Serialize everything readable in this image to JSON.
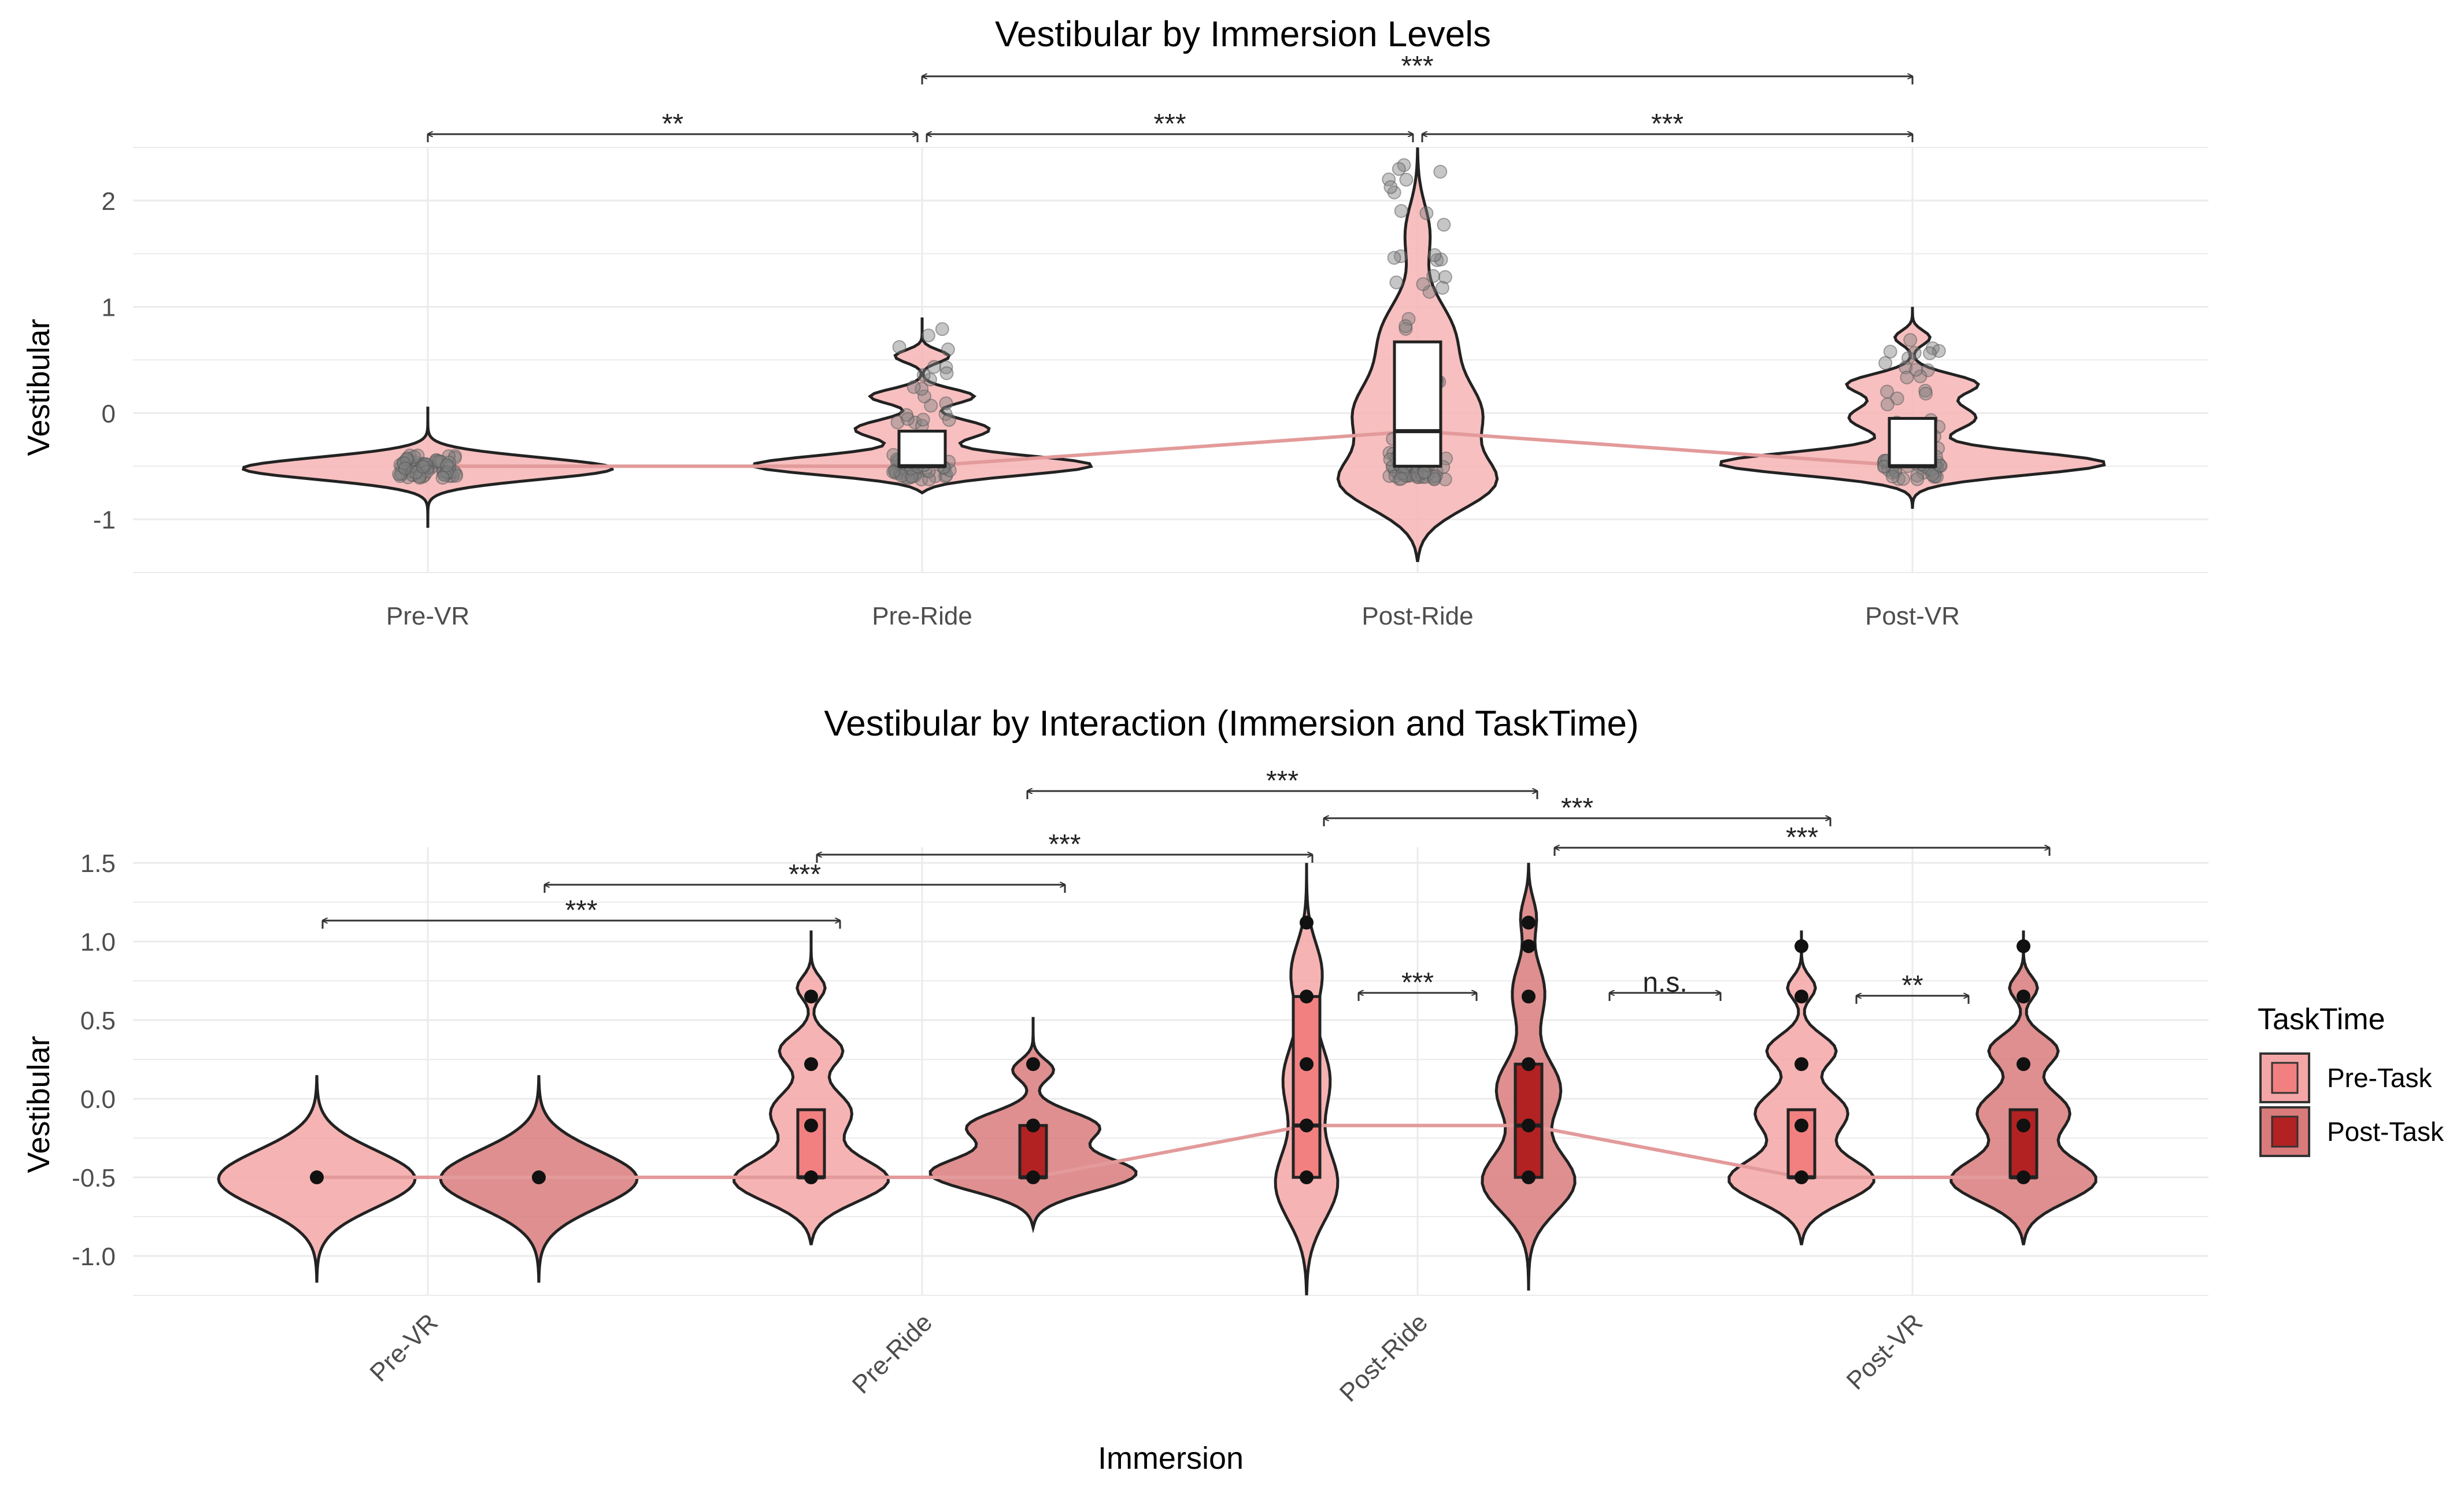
{
  "colors": {
    "grid": "#ebebeb",
    "axis_text": "#4d4d4d",
    "title": "#000000",
    "pre_task_fill": "#f4a6a6",
    "post_task_fill": "#d97b7b",
    "violin_fill_single": "#f6b4b4",
    "box_pre": "#f28080",
    "box_post": "#b22222",
    "mean_line": "#e39a9a",
    "jitter": "#808080"
  },
  "chart_data": [
    {
      "type": "violin",
      "title": "Vestibular by Immersion Levels",
      "xlabel": "",
      "ylabel": "Vestibular",
      "categories": [
        "Pre-VR",
        "Pre-Ride",
        "Post-Ride",
        "Post-VR"
      ],
      "ylim": [
        -1.5,
        2.5
      ],
      "yticks": [
        -1,
        0,
        1,
        2
      ],
      "ytick_labels": [
        "-1",
        "0",
        "1",
        "2"
      ],
      "series": [
        {
          "name": "Pre-VR",
          "min": -1.08,
          "max": 0.06,
          "box": null,
          "median": -0.5
        },
        {
          "name": "Pre-Ride",
          "min": -0.75,
          "max": 0.9,
          "box": [
            -0.5,
            -0.17
          ],
          "median": -0.5
        },
        {
          "name": "Post-Ride",
          "min": -1.4,
          "max": 2.5,
          "box": [
            -0.5,
            0.67
          ],
          "median": -0.17
        },
        {
          "name": "Post-VR",
          "min": -0.9,
          "max": 1.0,
          "box": [
            -0.5,
            -0.05
          ],
          "median": -0.5
        }
      ],
      "significance": [
        {
          "from": "Pre-VR",
          "to": "Pre-Ride",
          "label": "**",
          "level": 0
        },
        {
          "from": "Pre-Ride",
          "to": "Post-Ride",
          "label": "***",
          "level": 0
        },
        {
          "from": "Post-Ride",
          "to": "Post-VR",
          "label": "***",
          "level": 0
        },
        {
          "from": "Pre-Ride",
          "to": "Post-VR",
          "label": "***",
          "level": 1
        }
      ]
    },
    {
      "type": "violin",
      "title": "Vestibular by Interaction (Immersion and TaskTime)",
      "xlabel": "Immersion",
      "ylabel": "Vestibular",
      "categories": [
        "Pre-VR",
        "Pre-Ride",
        "Post-Ride",
        "Post-VR"
      ],
      "ylim": [
        -1.25,
        1.6
      ],
      "yticks": [
        -1.0,
        -0.5,
        0.0,
        0.5,
        1.0,
        1.5
      ],
      "ytick_labels": [
        "-1.0",
        "-0.5",
        "0.0",
        "0.5",
        "1.0",
        "1.5"
      ],
      "legend": {
        "title": "TaskTime",
        "entries": [
          "Pre-Task",
          "Post-Task"
        ],
        "position": "right"
      },
      "series": [
        {
          "name": "Pre-Task",
          "groups": [
            {
              "category": "Pre-VR",
              "min": -1.17,
              "max": 0.15,
              "box": null,
              "median": -0.5,
              "points": [
                -0.5
              ]
            },
            {
              "category": "Pre-Ride",
              "min": -0.93,
              "max": 1.07,
              "box": [
                -0.5,
                -0.07
              ],
              "median": -0.5,
              "points": [
                -0.5,
                -0.17,
                0.22,
                0.65
              ]
            },
            {
              "category": "Post-Ride",
              "min": -1.25,
              "max": 1.5,
              "box": [
                -0.5,
                0.65
              ],
              "median": -0.17,
              "points": [
                -0.5,
                -0.17,
                0.22,
                0.65,
                1.12
              ]
            },
            {
              "category": "Post-VR",
              "min": -0.93,
              "max": 1.07,
              "box": [
                -0.5,
                -0.07
              ],
              "median": -0.5,
              "points": [
                -0.5,
                -0.17,
                0.22,
                0.65,
                0.97
              ]
            }
          ]
        },
        {
          "name": "Post-Task",
          "groups": [
            {
              "category": "Pre-VR",
              "min": -1.17,
              "max": 0.15,
              "box": null,
              "median": -0.5,
              "points": [
                -0.5
              ]
            },
            {
              "category": "Pre-Ride",
              "min": -0.82,
              "max": 0.52,
              "box": [
                -0.5,
                -0.17
              ],
              "median": -0.5,
              "points": [
                -0.5,
                -0.17,
                0.22
              ]
            },
            {
              "category": "Post-Ride",
              "min": -1.22,
              "max": 1.5,
              "box": [
                -0.5,
                0.22
              ],
              "median": -0.17,
              "points": [
                -0.5,
                -0.17,
                0.22,
                0.65,
                0.97,
                1.12
              ]
            },
            {
              "category": "Post-VR",
              "min": -0.93,
              "max": 1.07,
              "box": [
                -0.5,
                -0.07
              ],
              "median": -0.5,
              "points": [
                -0.5,
                -0.17,
                0.22,
                0.65,
                0.97
              ]
            }
          ]
        }
      ],
      "significance": [
        {
          "label": "***"
        },
        {
          "label": "***"
        },
        {
          "label": "***"
        },
        {
          "label": "***"
        },
        {
          "label": "***"
        },
        {
          "label": "***"
        },
        {
          "label": "***"
        },
        {
          "label": "n.s."
        },
        {
          "label": "**"
        }
      ]
    }
  ]
}
